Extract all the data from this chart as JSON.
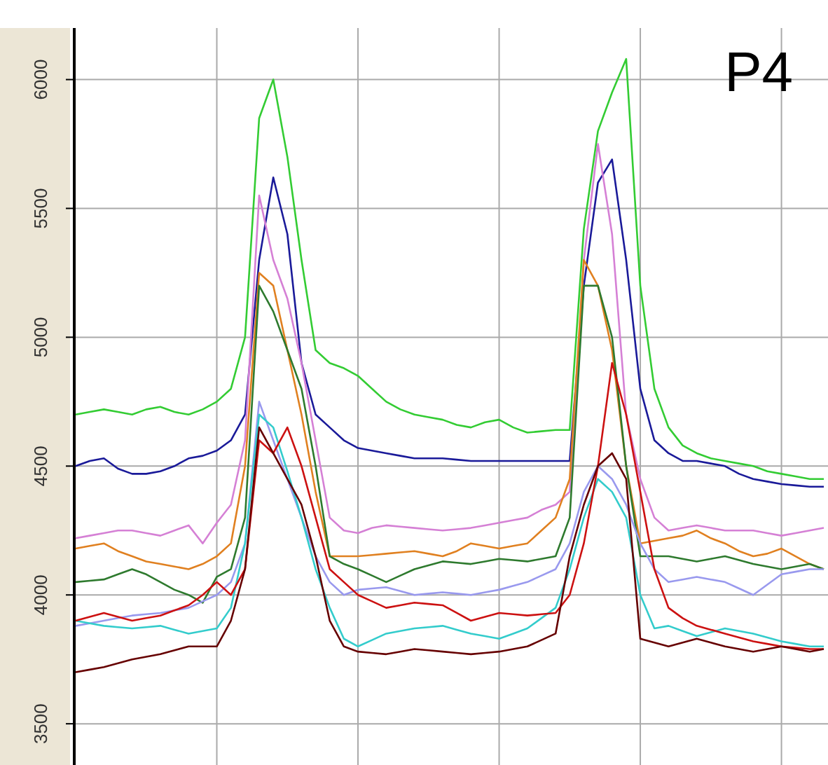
{
  "chart_data": {
    "type": "line",
    "annotations": [
      "P4"
    ],
    "categories": [
      null,
      null,
      null,
      null,
      null,
      null,
      null,
      null,
      null,
      null,
      null,
      null,
      null,
      null,
      null,
      null,
      null,
      null,
      null,
      null,
      null,
      null,
      null,
      null,
      null,
      null,
      null,
      null,
      null,
      null,
      null,
      null,
      null,
      null,
      null,
      null,
      null,
      null,
      null,
      null,
      null,
      null,
      null,
      null,
      null,
      null,
      null,
      null,
      null,
      null,
      null,
      null,
      null,
      null
    ],
    "ylim": [
      3340,
      6200
    ],
    "yticks": [
      3500,
      4000,
      4500,
      5000,
      5500,
      6000
    ],
    "grid": true,
    "tick_labels": "y",
    "marker": "none",
    "line_style": "solid",
    "series": [
      {
        "color": "#33cc33",
        "values": [
          4700,
          4710,
          4720,
          4710,
          4700,
          4720,
          4730,
          4710,
          4700,
          4720,
          4750,
          4800,
          5000,
          5850,
          6000,
          5700,
          5300,
          4950,
          4900,
          4880,
          4850,
          4800,
          4750,
          4720,
          4700,
          4690,
          4680,
          4660,
          4650,
          4670,
          4680,
          4650,
          4630,
          4635,
          4640,
          4640,
          5420,
          5800,
          5950,
          6080,
          5200,
          4800,
          4650,
          4580,
          4550,
          4530,
          4520,
          4510,
          4500,
          4480,
          4470,
          4460,
          4450,
          4450
        ]
      },
      {
        "color": "#1a1a99",
        "values": [
          4500,
          4520,
          4530,
          4490,
          4470,
          4470,
          4480,
          4500,
          4530,
          4540,
          4560,
          4600,
          4700,
          5300,
          5620,
          5400,
          4900,
          4700,
          4650,
          4600,
          4570,
          4560,
          4550,
          4540,
          4530,
          4530,
          4530,
          4525,
          4520,
          4520,
          4520,
          4520,
          4520,
          4520,
          4520,
          4520,
          5200,
          5600,
          5690,
          5300,
          4800,
          4600,
          4550,
          4520,
          4520,
          4510,
          4500,
          4470,
          4450,
          4440,
          4430,
          4425,
          4420,
          4420
        ]
      },
      {
        "color": "#d580d5",
        "values": [
          4220,
          4230,
          4240,
          4250,
          4250,
          4240,
          4230,
          4250,
          4270,
          4200,
          4280,
          4350,
          4600,
          5550,
          5300,
          5150,
          4900,
          4600,
          4300,
          4250,
          4240,
          4260,
          4270,
          4265,
          4260,
          4255,
          4250,
          4255,
          4260,
          4270,
          4280,
          4290,
          4300,
          4330,
          4350,
          4400,
          5300,
          5750,
          5400,
          4700,
          4450,
          4300,
          4250,
          4260,
          4270,
          4260,
          4250,
          4250,
          4250,
          4240,
          4230,
          4240,
          4250,
          4260
        ]
      },
      {
        "color": "#e08020",
        "values": [
          4180,
          4190,
          4200,
          4170,
          4150,
          4130,
          4120,
          4110,
          4100,
          4120,
          4150,
          4200,
          4500,
          5250,
          5200,
          4950,
          4700,
          4400,
          4150,
          4150,
          4150,
          4155,
          4160,
          4165,
          4170,
          4160,
          4150,
          4170,
          4200,
          4190,
          4180,
          4190,
          4200,
          4250,
          4300,
          4450,
          5300,
          5200,
          4950,
          4500,
          4200,
          4210,
          4220,
          4230,
          4250,
          4220,
          4200,
          4170,
          4150,
          4160,
          4180,
          4150,
          4120,
          4100
        ]
      },
      {
        "color": "#2e7a2e",
        "values": [
          4050,
          4055,
          4060,
          4080,
          4100,
          4080,
          4050,
          4020,
          4000,
          3970,
          4070,
          4100,
          4300,
          5200,
          5100,
          4950,
          4800,
          4500,
          4150,
          4120,
          4100,
          4075,
          4050,
          4075,
          4100,
          4115,
          4130,
          4125,
          4120,
          4130,
          4140,
          4135,
          4130,
          4140,
          4150,
          4300,
          5200,
          5200,
          5000,
          4500,
          4150,
          4150,
          4150,
          4140,
          4130,
          4140,
          4150,
          4135,
          4120,
          4110,
          4100,
          4110,
          4120,
          4100
        ]
      },
      {
        "color": "#9999ee",
        "values": [
          3880,
          3890,
          3900,
          3910,
          3920,
          3925,
          3930,
          3940,
          3950,
          3975,
          4000,
          4050,
          4200,
          4750,
          4600,
          4450,
          4300,
          4150,
          4050,
          4000,
          4020,
          4025,
          4030,
          4015,
          4000,
          4005,
          4010,
          4005,
          4000,
          4010,
          4020,
          4035,
          4050,
          4075,
          4100,
          4200,
          4400,
          4500,
          4450,
          4350,
          4200,
          4100,
          4050,
          4060,
          4070,
          4060,
          4050,
          4025,
          4000,
          4040,
          4080,
          4090,
          4100,
          4100
        ]
      },
      {
        "color": "#33cccc",
        "values": [
          3900,
          3890,
          3880,
          3875,
          3870,
          3875,
          3880,
          3865,
          3850,
          3860,
          3870,
          3950,
          4200,
          4700,
          4650,
          4480,
          4300,
          4100,
          3950,
          3830,
          3800,
          3825,
          3850,
          3860,
          3870,
          3875,
          3880,
          3865,
          3850,
          3840,
          3830,
          3850,
          3870,
          3910,
          3950,
          4100,
          4300,
          4450,
          4400,
          4300,
          4000,
          3870,
          3880,
          3860,
          3840,
          3855,
          3870,
          3860,
          3850,
          3835,
          3820,
          3810,
          3800,
          3800
        ]
      },
      {
        "color": "#cc1111",
        "values": [
          3900,
          3915,
          3930,
          3915,
          3900,
          3910,
          3920,
          3940,
          3960,
          4000,
          4050,
          4000,
          4100,
          4600,
          4550,
          4650,
          4500,
          4300,
          4100,
          4050,
          4000,
          3975,
          3950,
          3960,
          3970,
          3965,
          3960,
          3930,
          3900,
          3915,
          3930,
          3925,
          3920,
          3925,
          3930,
          4000,
          4200,
          4500,
          4900,
          4700,
          4400,
          4100,
          3950,
          3910,
          3880,
          3865,
          3850,
          3835,
          3820,
          3810,
          3800,
          3795,
          3790,
          3790
        ]
      },
      {
        "color": "#660000",
        "values": [
          3700,
          3710,
          3720,
          3735,
          3750,
          3760,
          3770,
          3785,
          3800,
          3800,
          3800,
          3900,
          4100,
          4650,
          4550,
          4450,
          4350,
          4150,
          3900,
          3800,
          3780,
          3775,
          3770,
          3780,
          3790,
          3785,
          3780,
          3775,
          3770,
          3775,
          3780,
          3790,
          3800,
          3825,
          3850,
          4150,
          4350,
          4500,
          4550,
          4450,
          3830,
          3815,
          3800,
          3815,
          3830,
          3815,
          3800,
          3790,
          3780,
          3790,
          3800,
          3790,
          3780,
          3790
        ]
      }
    ]
  }
}
